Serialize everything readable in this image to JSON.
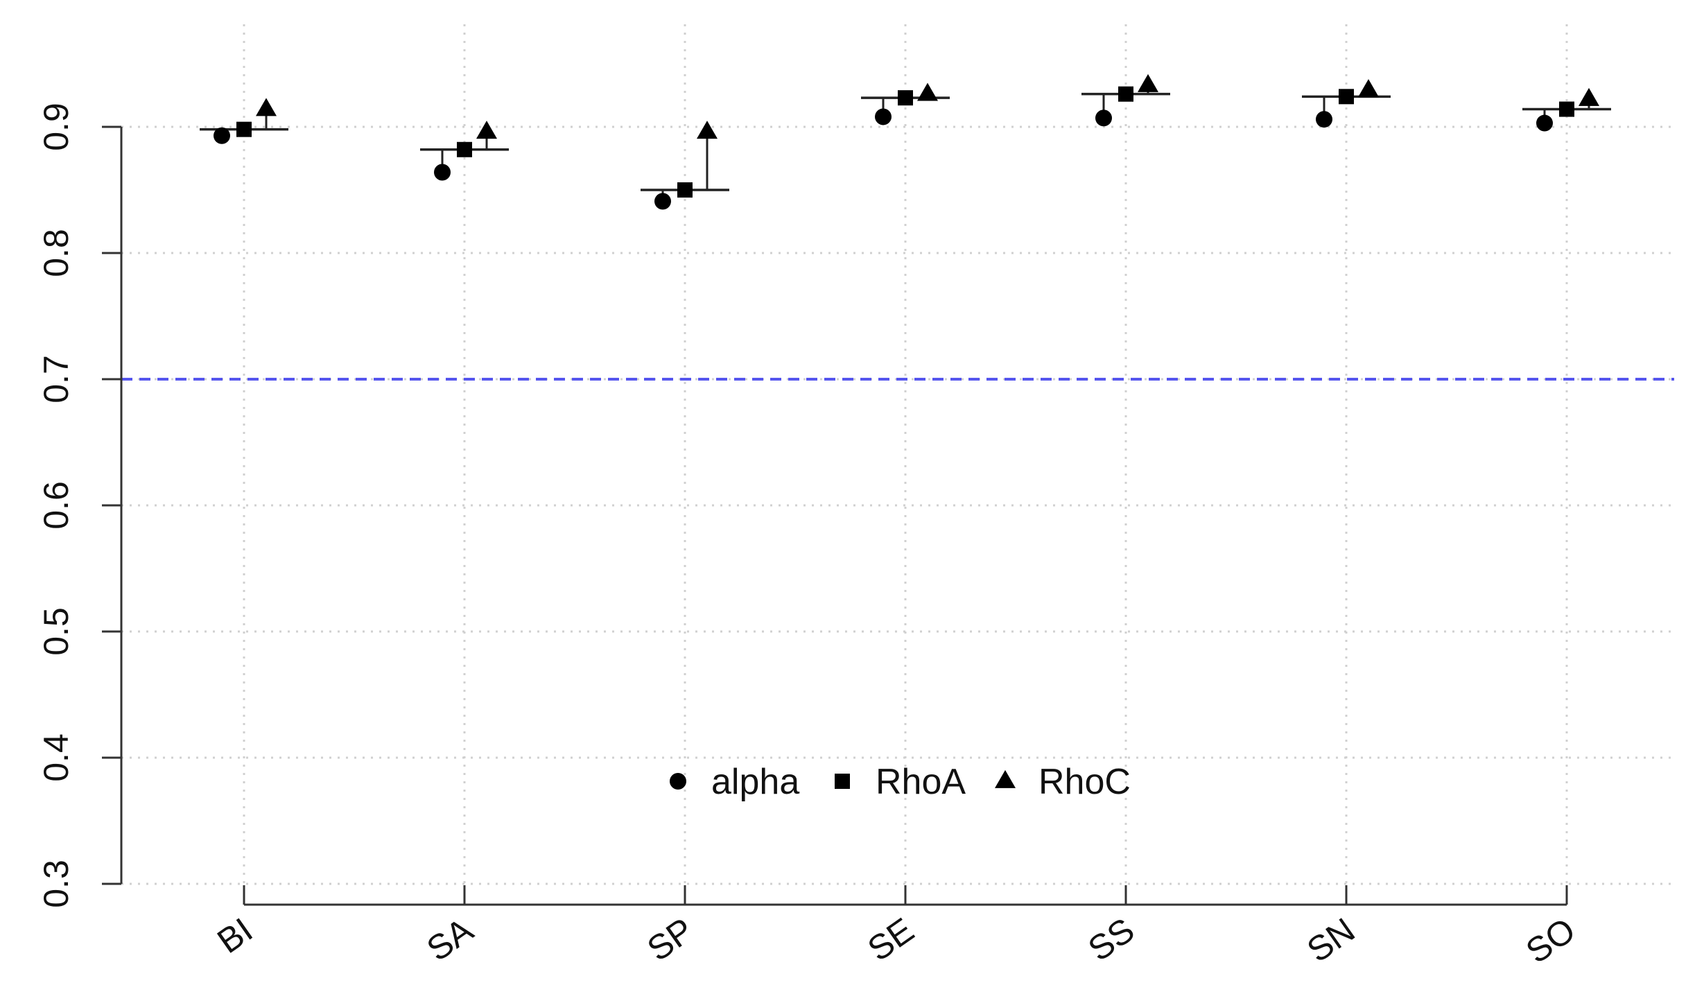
{
  "chart_data": {
    "type": "scatter",
    "title": "",
    "xlabel": "",
    "ylabel": "",
    "categories": [
      "BI",
      "SA",
      "SP",
      "SE",
      "SS",
      "SN",
      "SO"
    ],
    "series": [
      {
        "name": "alpha",
        "marker": "circle",
        "values": [
          0.893,
          0.864,
          0.841,
          0.908,
          0.907,
          0.906,
          0.903
        ]
      },
      {
        "name": "RhoA",
        "marker": "square",
        "values": [
          0.898,
          0.882,
          0.85,
          0.923,
          0.926,
          0.924,
          0.914
        ]
      },
      {
        "name": "RhoC",
        "marker": "triangle",
        "values": [
          0.914,
          0.896,
          0.896,
          0.926,
          0.933,
          0.929,
          0.922
        ]
      }
    ],
    "ylim": [
      0.3,
      0.95
    ],
    "yticks": [
      "0.3",
      "0.4",
      "0.5",
      "0.6",
      "0.7",
      "0.8",
      "0.9"
    ],
    "reference_line": {
      "value": 0.7,
      "color": "#5555ee",
      "style": "dashed"
    },
    "grid": true,
    "grid_color": "#d0d0d0",
    "legend": {
      "placement": "bottom-center",
      "entries": [
        "alpha",
        "RhoA",
        "RhoC"
      ]
    },
    "marker_color": "#000000"
  }
}
